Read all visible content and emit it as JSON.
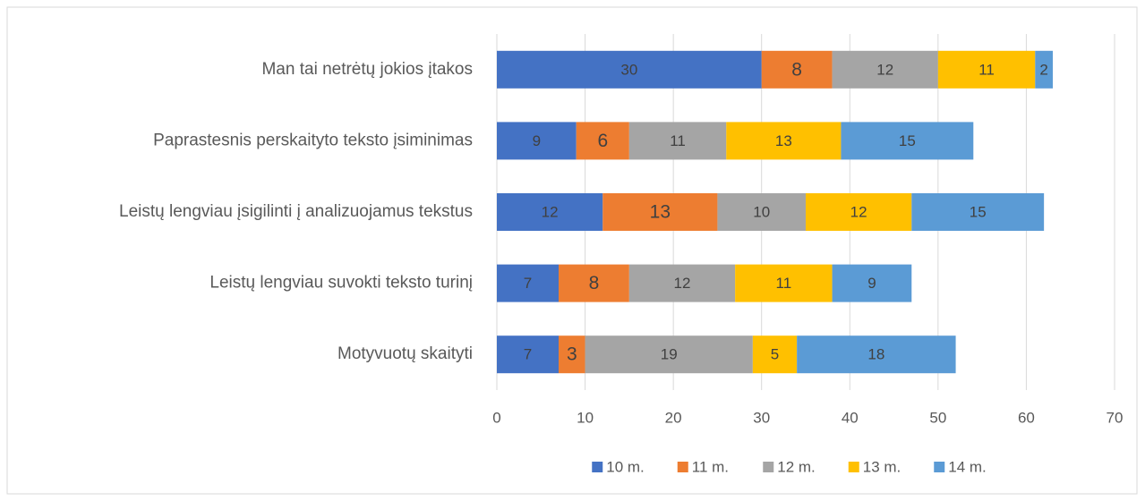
{
  "chart_data": {
    "type": "bar",
    "orientation": "horizontal",
    "stacked": true,
    "categories": [
      "Man tai netrėtų jokios įtakos",
      "Paprastesnis perskaityto teksto įsiminimas",
      "Leistų lengviau įsigilinti į analizuojamus tekstus",
      "Leistų lengviau suvokti teksto turinį",
      "Motyvuotų skaityti"
    ],
    "series": [
      {
        "name": "10 m.",
        "color": "#4472c4",
        "values": [
          30,
          9,
          12,
          7,
          7
        ]
      },
      {
        "name": "11 m.",
        "color": "#ed7d31",
        "values": [
          8,
          6,
          13,
          8,
          3
        ]
      },
      {
        "name": "12 m.",
        "color": "#a5a5a5",
        "values": [
          12,
          11,
          10,
          12,
          19
        ]
      },
      {
        "name": "13 m.",
        "color": "#ffc000",
        "values": [
          11,
          13,
          12,
          11,
          5
        ]
      },
      {
        "name": "14 m.",
        "color": "#5b9bd5",
        "values": [
          2,
          15,
          15,
          9,
          18
        ]
      }
    ],
    "xlim": [
      0,
      70
    ],
    "xticks": [
      0,
      10,
      20,
      30,
      40,
      50,
      60,
      70
    ],
    "grid": true,
    "legend": "bottom"
  }
}
